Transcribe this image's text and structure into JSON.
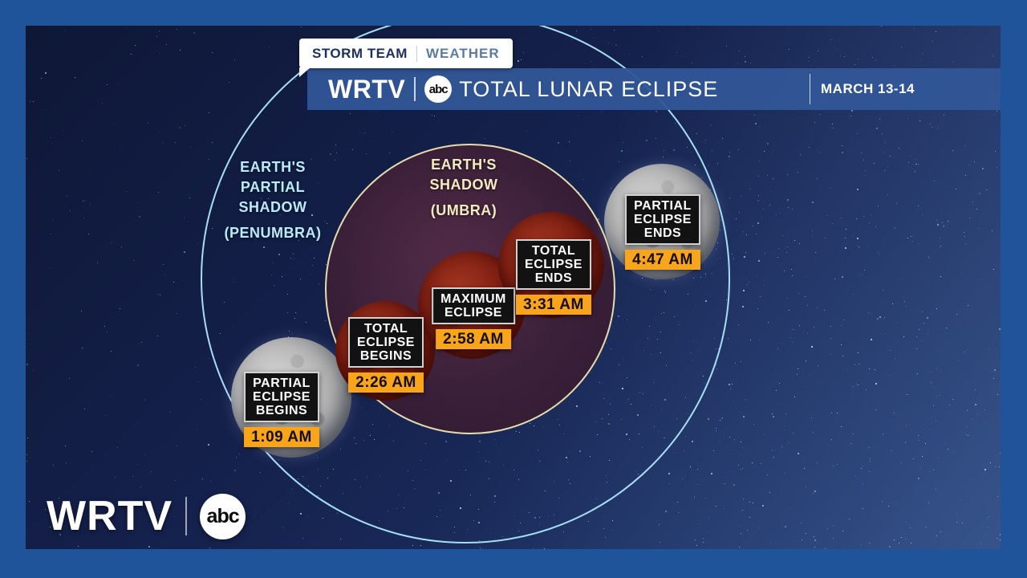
{
  "badge": {
    "primary": "STORM TEAM",
    "secondary": "WEATHER"
  },
  "header": {
    "station": "WRTV",
    "network_logo": "abc",
    "title": "TOTAL LUNAR ECLIPSE",
    "date_range": "MARCH 13-14"
  },
  "diagram": {
    "penumbra": {
      "label": "EARTH'S\nPARTIAL\nSHADOW",
      "sublabel": "(PENUMBRA)"
    },
    "umbra": {
      "label": "EARTH'S\nSHADOW",
      "sublabel": "(UMBRA)"
    },
    "events": [
      {
        "label": "PARTIAL\nECLIPSE\nBEGINS",
        "time": "1:09 AM",
        "moon": "full-gray-moon"
      },
      {
        "label": "TOTAL\nECLIPSE\nBEGINS",
        "time": "2:26 AM",
        "moon": "red-eclipsed-moon"
      },
      {
        "label": "MAXIMUM\nECLIPSE",
        "time": "2:58 AM",
        "moon": "red-eclipsed-moon"
      },
      {
        "label": "TOTAL\nECLIPSE\nENDS",
        "time": "3:31 AM",
        "moon": "red-eclipsed-moon"
      },
      {
        "label": "PARTIAL\nECLIPSE\nENDS",
        "time": "4:47 AM",
        "moon": "full-gray-moon"
      }
    ]
  },
  "footer": {
    "station": "WRTV",
    "network_logo": "abc"
  },
  "colors": {
    "frame_blue": "#20549A",
    "accent_orange": "#F9A51C",
    "penumbra_outline": "#A5DFF2",
    "umbra_outline": "#E6DCAE",
    "label_box_black": "#121212",
    "sky_navy": "#14204A"
  }
}
